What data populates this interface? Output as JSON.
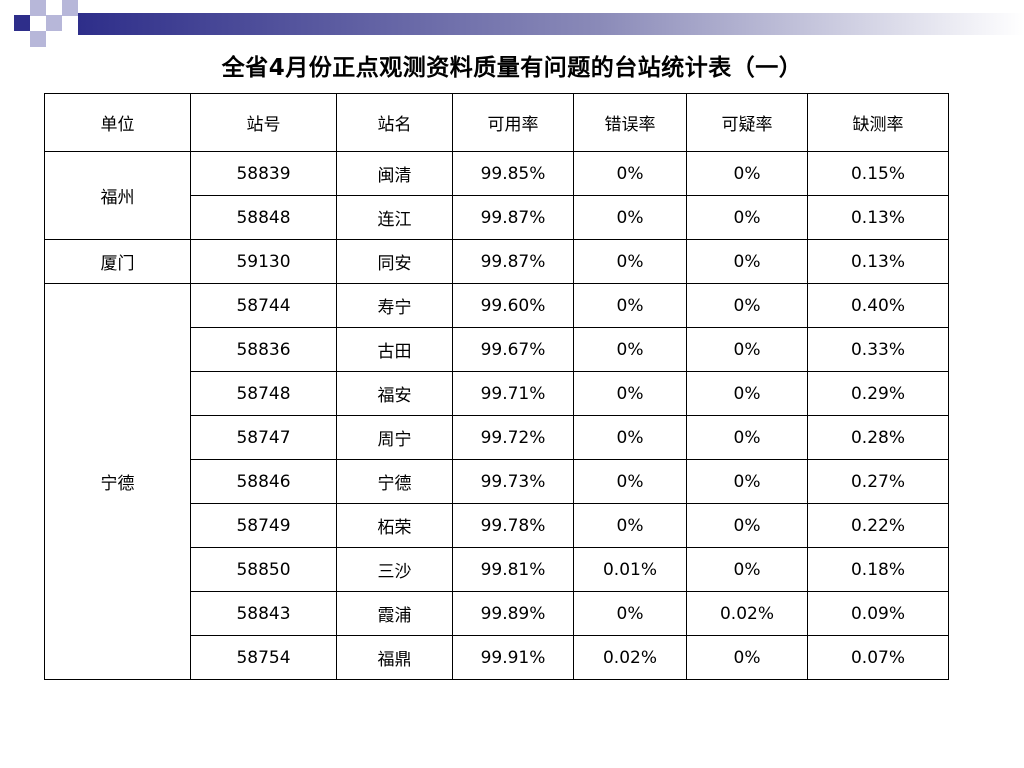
{
  "title": "全省4月份正点观测资料质量有问题的台站统计表（一）",
  "headers": [
    "单位",
    "站号",
    "站名",
    "可用率",
    "错误率",
    "可疑率",
    "缺测率"
  ],
  "groups": [
    {
      "unit": "福州",
      "rows": [
        {
          "id": "58839",
          "name": "闽清",
          "avail": "99.85%",
          "err": "0%",
          "susp": "0%",
          "miss": "0.15%"
        },
        {
          "id": "58848",
          "name": "连江",
          "avail": "99.87%",
          "err": "0%",
          "susp": "0%",
          "miss": "0.13%"
        }
      ]
    },
    {
      "unit": "厦门",
      "rows": [
        {
          "id": "59130",
          "name": "同安",
          "avail": "99.87%",
          "err": "0%",
          "susp": "0%",
          "miss": "0.13%"
        }
      ]
    },
    {
      "unit": "宁德",
      "rows": [
        {
          "id": "58744",
          "name": "寿宁",
          "avail": "99.60%",
          "err": "0%",
          "susp": "0%",
          "miss": "0.40%"
        },
        {
          "id": "58836",
          "name": "古田",
          "avail": "99.67%",
          "err": "0%",
          "susp": "0%",
          "miss": "0.33%"
        },
        {
          "id": "58748",
          "name": "福安",
          "avail": "99.71%",
          "err": "0%",
          "susp": "0%",
          "miss": "0.29%"
        },
        {
          "id": "58747",
          "name": "周宁",
          "avail": "99.72%",
          "err": "0%",
          "susp": "0%",
          "miss": "0.28%"
        },
        {
          "id": "58846",
          "name": "宁德",
          "avail": "99.73%",
          "err": "0%",
          "susp": "0%",
          "miss": "0.27%"
        },
        {
          "id": "58749",
          "name": "柘荣",
          "avail": "99.78%",
          "err": "0%",
          "susp": "0%",
          "miss": "0.22%"
        },
        {
          "id": "58850",
          "name": "三沙",
          "avail": "99.81%",
          "err": "0.01%",
          "susp": "0%",
          "miss": "0.18%"
        },
        {
          "id": "58843",
          "name": "霞浦",
          "avail": "99.89%",
          "err": "0%",
          "susp": "0.02%",
          "miss": "0.09%"
        },
        {
          "id": "58754",
          "name": "福鼎",
          "avail": "99.91%",
          "err": "0.02%",
          "susp": "0%",
          "miss": "0.07%"
        }
      ]
    }
  ],
  "decor": {
    "square_color": "#2e2e8a",
    "light_square_color": "#b7b7d9",
    "bar_color": "#2e2e8a"
  }
}
